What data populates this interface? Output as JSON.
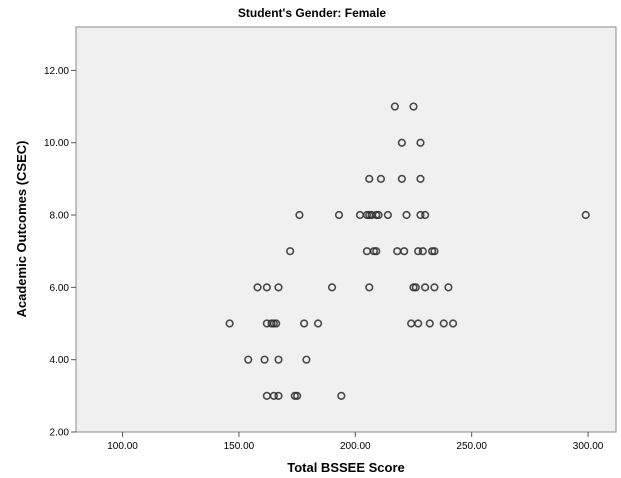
{
  "chart_data": {
    "type": "scatter",
    "title": "Student's Gender: Female",
    "xlabel": "Total BSSEE Score",
    "ylabel": "Academic Outcomes (CSEC)",
    "xlim": [
      80,
      312
    ],
    "ylim": [
      2,
      13.2
    ],
    "xticks": [
      100,
      150,
      200,
      250,
      300
    ],
    "yticks": [
      2,
      4,
      6,
      8,
      10,
      12
    ],
    "xtick_labels": [
      "100.00",
      "150.00",
      "200.00",
      "250.00",
      "300.00"
    ],
    "ytick_labels": [
      "2.00",
      "4.00",
      "6.00",
      "8.00",
      "10.00",
      "12.00"
    ],
    "grid": false,
    "plot_background": "#f0f0f0",
    "marker_color": "#2b2b2b",
    "points": [
      {
        "x": 217,
        "y": 11
      },
      {
        "x": 225,
        "y": 11
      },
      {
        "x": 220,
        "y": 10
      },
      {
        "x": 228,
        "y": 10
      },
      {
        "x": 206,
        "y": 9
      },
      {
        "x": 211,
        "y": 9
      },
      {
        "x": 220,
        "y": 9
      },
      {
        "x": 228,
        "y": 9
      },
      {
        "x": 176,
        "y": 8
      },
      {
        "x": 193,
        "y": 8
      },
      {
        "x": 202,
        "y": 8
      },
      {
        "x": 205,
        "y": 8
      },
      {
        "x": 206,
        "y": 8
      },
      {
        "x": 207,
        "y": 8
      },
      {
        "x": 209,
        "y": 8
      },
      {
        "x": 210,
        "y": 8
      },
      {
        "x": 214,
        "y": 8
      },
      {
        "x": 222,
        "y": 8
      },
      {
        "x": 228,
        "y": 8
      },
      {
        "x": 230,
        "y": 8
      },
      {
        "x": 299,
        "y": 8
      },
      {
        "x": 172,
        "y": 7
      },
      {
        "x": 205,
        "y": 7
      },
      {
        "x": 208,
        "y": 7
      },
      {
        "x": 209,
        "y": 7
      },
      {
        "x": 218,
        "y": 7
      },
      {
        "x": 221,
        "y": 7
      },
      {
        "x": 227,
        "y": 7
      },
      {
        "x": 229,
        "y": 7
      },
      {
        "x": 233,
        "y": 7
      },
      {
        "x": 234,
        "y": 7
      },
      {
        "x": 158,
        "y": 6
      },
      {
        "x": 162,
        "y": 6
      },
      {
        "x": 167,
        "y": 6
      },
      {
        "x": 190,
        "y": 6
      },
      {
        "x": 206,
        "y": 6
      },
      {
        "x": 225,
        "y": 6
      },
      {
        "x": 226,
        "y": 6
      },
      {
        "x": 230,
        "y": 6
      },
      {
        "x": 234,
        "y": 6
      },
      {
        "x": 240,
        "y": 6
      },
      {
        "x": 146,
        "y": 5
      },
      {
        "x": 162,
        "y": 5
      },
      {
        "x": 164,
        "y": 5
      },
      {
        "x": 165,
        "y": 5
      },
      {
        "x": 166,
        "y": 5
      },
      {
        "x": 178,
        "y": 5
      },
      {
        "x": 184,
        "y": 5
      },
      {
        "x": 224,
        "y": 5
      },
      {
        "x": 227,
        "y": 5
      },
      {
        "x": 232,
        "y": 5
      },
      {
        "x": 238,
        "y": 5
      },
      {
        "x": 242,
        "y": 5
      },
      {
        "x": 154,
        "y": 4
      },
      {
        "x": 161,
        "y": 4
      },
      {
        "x": 167,
        "y": 4
      },
      {
        "x": 179,
        "y": 4
      },
      {
        "x": 162,
        "y": 3
      },
      {
        "x": 165,
        "y": 3
      },
      {
        "x": 167,
        "y": 3
      },
      {
        "x": 174,
        "y": 3
      },
      {
        "x": 175,
        "y": 3
      },
      {
        "x": 194,
        "y": 3
      }
    ]
  }
}
